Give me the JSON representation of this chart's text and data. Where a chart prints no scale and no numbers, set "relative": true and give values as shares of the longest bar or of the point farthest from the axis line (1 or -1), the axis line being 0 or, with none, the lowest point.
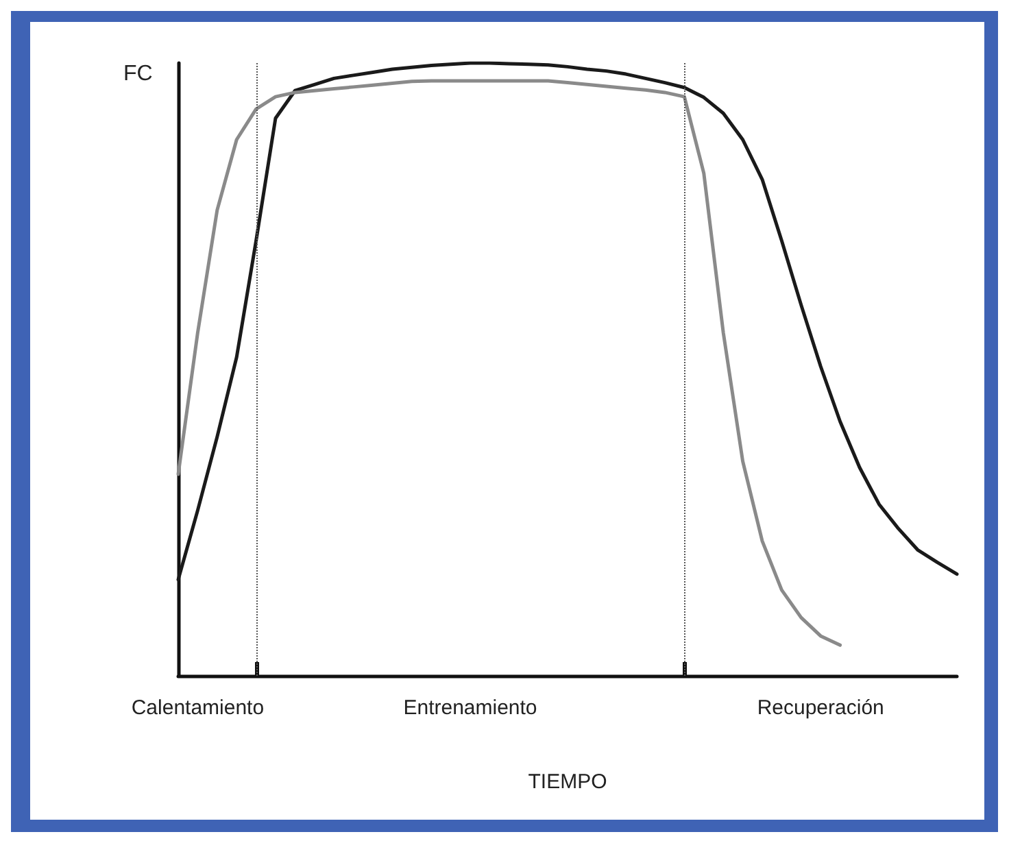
{
  "chart_data": {
    "type": "line",
    "relative": true,
    "ylabel": "FC",
    "xlabel": "TIEMPO",
    "marker": "none",
    "line_style": "solid",
    "categories": [
      null,
      "Calentamiento",
      null,
      null,
      null,
      null,
      null,
      null,
      null,
      null,
      null,
      null,
      null,
      null,
      null,
      "Entrenamiento",
      null,
      null,
      null,
      null,
      null,
      null,
      null,
      null,
      null,
      null,
      null,
      null,
      null,
      null,
      null,
      null,
      null,
      "Recuperación",
      null,
      null,
      null,
      null,
      null,
      null,
      null
    ],
    "series": [
      {
        "color": "#1a1a1a",
        "values": [
          0.157,
          0.27,
          0.39,
          0.52,
          0.71,
          0.91,
          0.955,
          0.965,
          0.975,
          0.98,
          0.985,
          0.99,
          0.993,
          0.996,
          0.998,
          1.0,
          1.0,
          0.999,
          0.998,
          0.997,
          0.994,
          0.99,
          0.987,
          0.982,
          0.975,
          0.968,
          0.96,
          0.944,
          0.918,
          0.875,
          0.81,
          0.71,
          0.605,
          0.505,
          0.415,
          0.34,
          0.28,
          0.24,
          0.205,
          0.185,
          0.166
        ]
      },
      {
        "color": "#8a8a8a",
        "values": [
          0.329,
          0.56,
          0.76,
          0.875,
          0.925,
          0.945,
          0.952,
          0.955,
          0.958,
          0.961,
          0.964,
          0.967,
          0.97,
          0.971,
          0.971,
          0.971,
          0.971,
          0.971,
          0.971,
          0.971,
          0.968,
          0.965,
          0.962,
          0.959,
          0.956,
          0.952,
          0.945,
          0.82,
          0.56,
          0.35,
          0.22,
          0.14,
          0.095,
          0.065,
          0.05,
          null,
          null,
          null,
          null,
          null,
          null
        ]
      }
    ]
  }
}
